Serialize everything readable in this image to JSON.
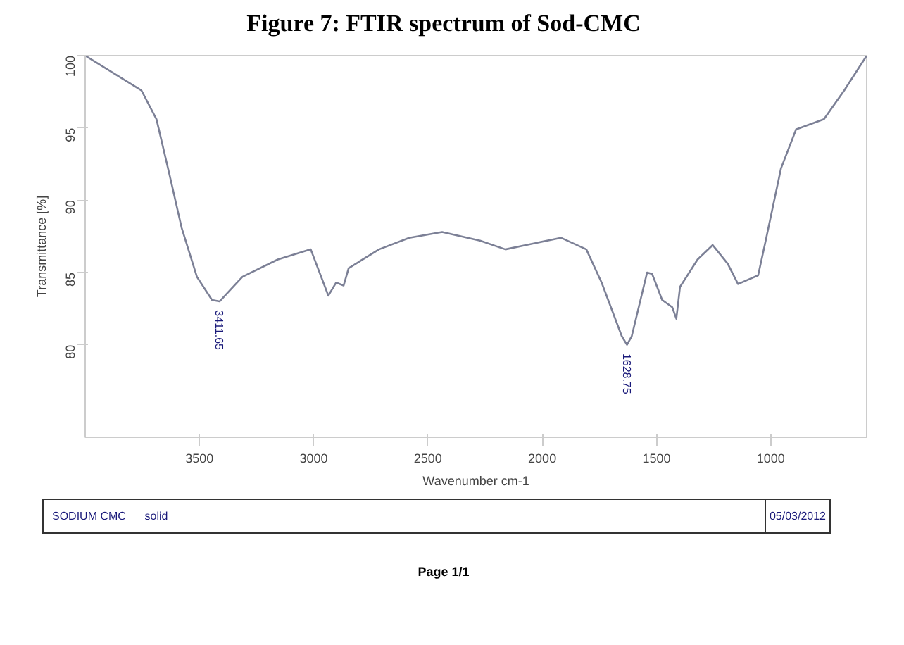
{
  "chart_data": {
    "type": "line",
    "title": "Figure 7: FTIR spectrum of Sod-CMC",
    "xlabel": "Wavenumber cm-1",
    "ylabel": "Transmittance [%]",
    "x": [
      4000,
      3754,
      3688,
      3633,
      3578,
      3511,
      3445,
      3412,
      3312,
      3157,
      3013,
      2936,
      2902,
      2869,
      2847,
      2714,
      2582,
      2438,
      2272,
      2161,
      1918,
      1807,
      1740,
      1652,
      1629,
      1608,
      1541,
      1519,
      1475,
      1431,
      1413,
      1397,
      1320,
      1254,
      1188,
      1143,
      1055,
      1022,
      955,
      889,
      767,
      678,
      580
    ],
    "series": [
      {
        "color": "#7c8096",
        "values": [
          100,
          97.6,
          95.6,
          91.9,
          88.1,
          84.7,
          83.1,
          83.0,
          84.7,
          85.9,
          86.6,
          83.4,
          84.3,
          84.1,
          85.3,
          86.6,
          87.4,
          87.8,
          87.2,
          86.6,
          87.4,
          86.6,
          84.3,
          80.6,
          80.0,
          80.6,
          85.0,
          84.9,
          83.1,
          82.6,
          81.8,
          84.0,
          85.9,
          86.9,
          85.6,
          84.2,
          84.8,
          87.2,
          92.2,
          94.9,
          95.6,
          97.6,
          100
        ]
      }
    ],
    "xlim": [
      4000,
      580
    ],
    "ylim": [
      73.6,
      100
    ],
    "xticks": [
      3500,
      3000,
      2500,
      2000,
      1500,
      1000
    ],
    "yticks": [
      80,
      85,
      90,
      95,
      100
    ],
    "grid": false,
    "line_style": "solid",
    "annotations": [
      {
        "text": "3411.65",
        "x": 3411.65,
        "y": 83.0
      },
      {
        "text": "1628.75",
        "x": 1628.75,
        "y": 80.0
      },
      "SODIUM CMC",
      "solid",
      "05/03/2012",
      "Page 1/1"
    ]
  }
}
